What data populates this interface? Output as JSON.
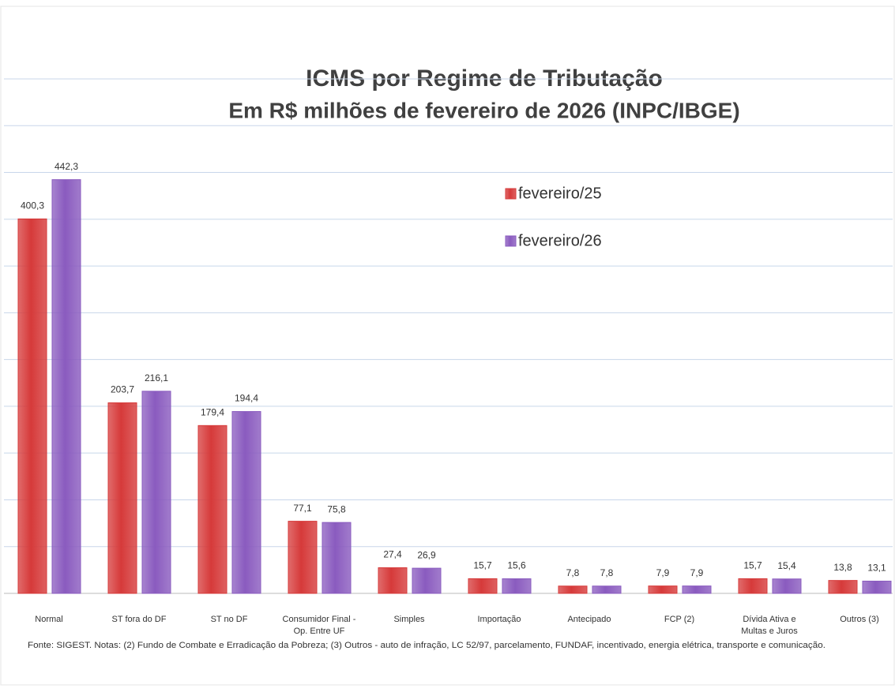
{
  "chart_data": {
    "type": "bar",
    "title": "ICMS por Regime de Tributação",
    "subtitle": "Em R$ milhões de fevereiro de 2026 (INPC/IBGE)",
    "categories": [
      "Normal",
      "ST fora do DF",
      "ST no DF",
      "Consumidor Final - Op. Entre UF",
      "Simples",
      "Importação",
      "Antecipado",
      "FCP (2)",
      "Dívida Ativa e Multas e Juros",
      "Outros (3)"
    ],
    "series": [
      {
        "name": "fevereiro/25",
        "color": "#d63a3a",
        "values": [
          400.3,
          203.7,
          179.4,
          77.1,
          27.4,
          15.7,
          7.8,
          7.9,
          15.7,
          13.8
        ],
        "value_labels": [
          "400,3",
          "203,7",
          "179,4",
          "77,1",
          "27,4",
          "15,7",
          "7,8",
          "7,9",
          "15,7",
          "13,8"
        ]
      },
      {
        "name": "fevereiro/26",
        "color": "#8a5bbf",
        "values": [
          442.3,
          216.1,
          194.4,
          75.8,
          26.9,
          15.6,
          7.8,
          7.9,
          15.4,
          13.1
        ],
        "value_labels": [
          "442,3",
          "216,1",
          "194,4",
          "75,8",
          "26,9",
          "15,6",
          "7,8",
          "7,9",
          "15,4",
          "13,1"
        ]
      }
    ],
    "ylim": [
      0,
      550
    ],
    "yticks": [
      0,
      50,
      100,
      150,
      200,
      250,
      300,
      350,
      400,
      450,
      500,
      550
    ],
    "grid": true,
    "footnote": "Fonte: SIGEST. Notas: (2) Fundo de Combate e Erradicação da Pobreza; (3) Outros - auto de infração, LC 52/97, parcelamento, FUNDAF, incentivado, energia elétrica, transporte e comunicação."
  }
}
